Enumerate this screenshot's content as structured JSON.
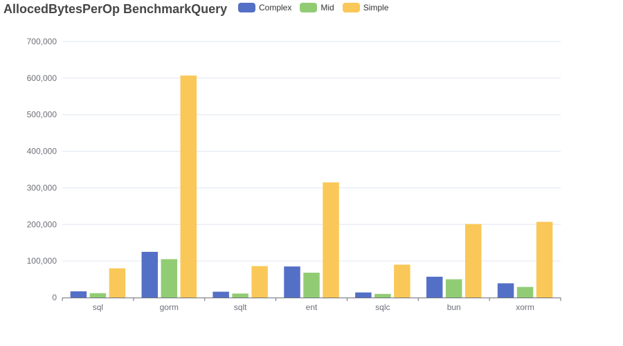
{
  "chart_data": {
    "type": "bar",
    "title": "AllocedBytesPerOp BenchmarkQuery",
    "xlabel": "",
    "ylabel": "",
    "categories": [
      "sql",
      "gorm",
      "sqlt",
      "ent",
      "sqlc",
      "bun",
      "xorm"
    ],
    "series": [
      {
        "name": "Complex",
        "color": "#5470c6",
        "values": [
          17000,
          125000,
          16000,
          85000,
          14000,
          57000,
          39000
        ]
      },
      {
        "name": "Mid",
        "color": "#91cc75",
        "values": [
          12000,
          105000,
          11000,
          68000,
          10000,
          50000,
          29000
        ]
      },
      {
        "name": "Simple",
        "color": "#fac858",
        "values": [
          80000,
          607000,
          86000,
          315000,
          90000,
          201000,
          207000
        ]
      }
    ],
    "ylim": [
      0,
      700000
    ],
    "yticks": [
      "0",
      "100,000",
      "200,000",
      "300,000",
      "400,000",
      "500,000",
      "600,000",
      "700,000"
    ],
    "grid": true,
    "legend_position": "top"
  }
}
